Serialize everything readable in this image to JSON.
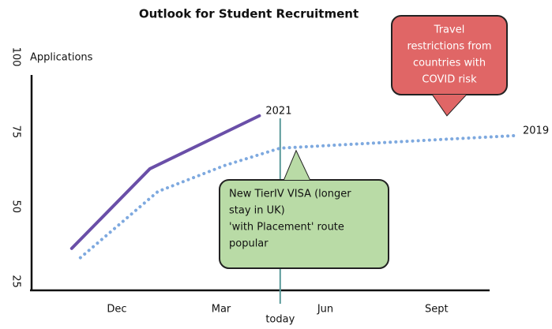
{
  "chart_data": {
    "type": "line",
    "title": "Outlook for Student Recruitment",
    "y_label": "Applications",
    "xlim": [
      -2.5,
      12
    ],
    "xticks": [
      {
        "value": 0,
        "label": "Dec"
      },
      {
        "value": 3,
        "label": "Mar"
      },
      {
        "value": 6,
        "label": "Jun"
      },
      {
        "value": 9.2,
        "label": "Sept"
      }
    ],
    "ylim": [
      22,
      100
    ],
    "yticks": [
      25,
      50,
      75,
      100
    ],
    "series": [
      {
        "name": "2021",
        "color": "#6a4fa8",
        "style": "solid",
        "x": [
          -1.3,
          0.95,
          4.1
        ],
        "values": [
          36,
          62.6,
          80.3
        ]
      },
      {
        "name": "2019",
        "color": "#7ea9df",
        "style": "dotted",
        "x": [
          -1.05,
          1.18,
          3.1,
          4.7,
          7.1,
          9.35,
          11.5
        ],
        "values": [
          32.9,
          55,
          63.7,
          69.5,
          71,
          72.4,
          73.7
        ]
      }
    ],
    "today": {
      "text": "today",
      "x": 4.7
    },
    "annotations": [
      {
        "lines": [
          "New TierIV VISA (longer",
          "stay in UK)",
          "'with Placement' route",
          "popular"
        ],
        "color": "#b9dba6"
      },
      {
        "lines": [
          "Travel",
          "restrictions from",
          "countries with",
          "COVID risk"
        ],
        "color": "#e06666"
      }
    ]
  }
}
